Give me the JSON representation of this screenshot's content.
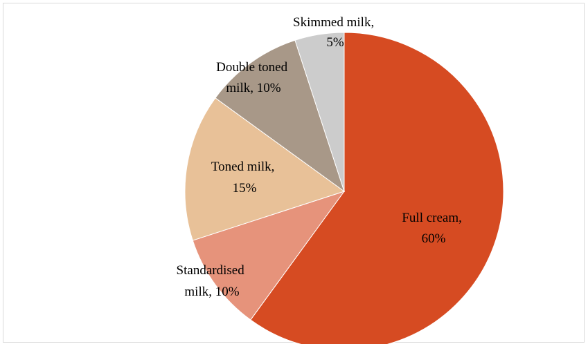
{
  "chart_data": {
    "type": "pie",
    "slices": [
      {
        "label_line1": "Full cream,",
        "label_line2": "60%",
        "category": "Full cream",
        "value": 60,
        "color": "#d64b22"
      },
      {
        "label_line1": "Standardised",
        "label_line2": "milk, 10%",
        "category": "Standardised milk",
        "value": 10,
        "color": "#e6937b"
      },
      {
        "label_line1": "Toned milk,",
        "label_line2": "15%",
        "category": "Toned milk",
        "value": 15,
        "color": "#e8c198"
      },
      {
        "label_line1": "Double toned",
        "label_line2": "milk, 10%",
        "category": "Double toned milk",
        "value": 10,
        "color": "#a89888"
      },
      {
        "label_line1": "Skimmed milk,",
        "label_line2": "5%",
        "category": "Skimmed milk",
        "value": 5,
        "color": "#cccccc"
      }
    ]
  }
}
